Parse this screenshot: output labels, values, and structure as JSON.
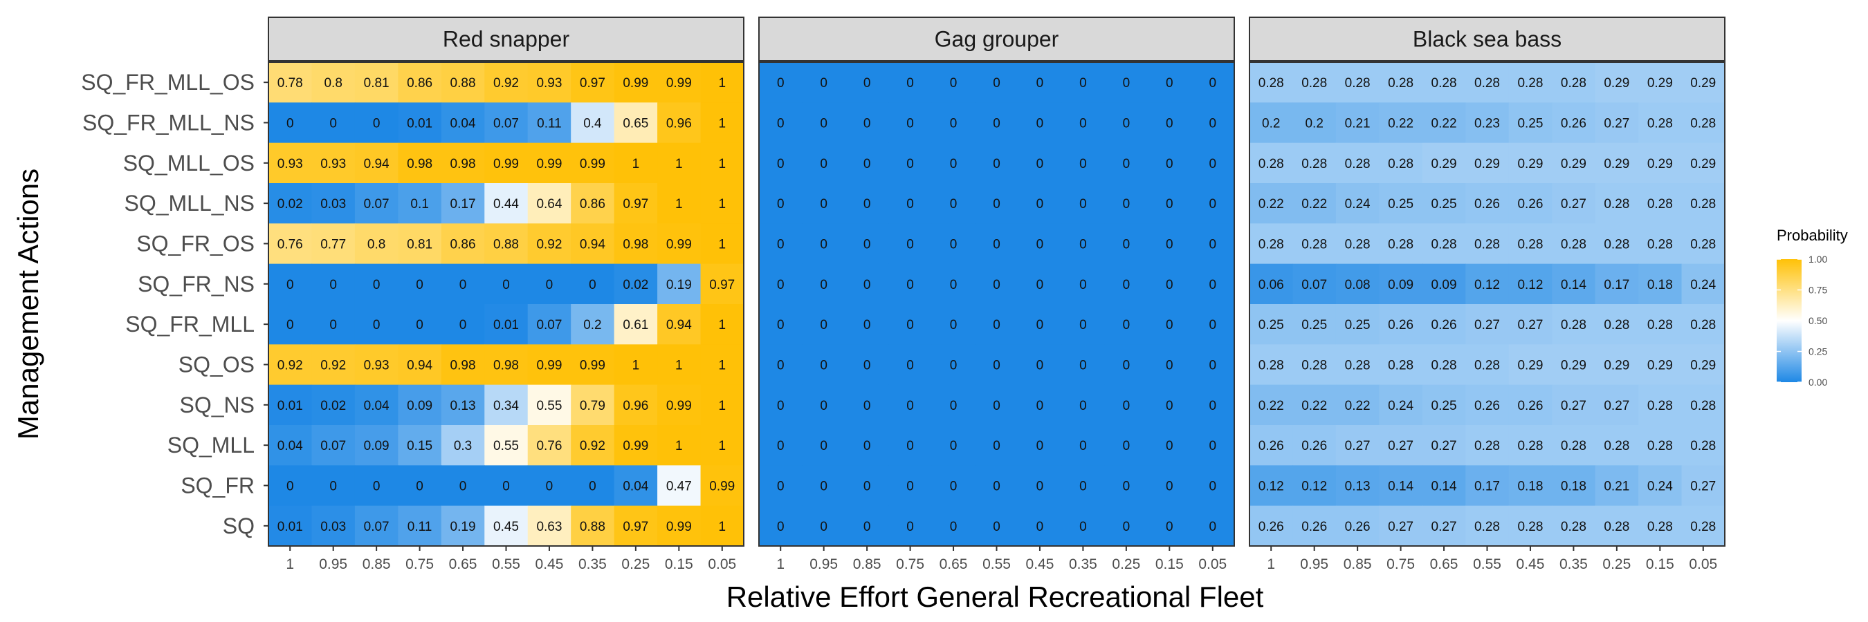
{
  "chart_data": {
    "type": "heatmap",
    "xlabel": "Relative Effort General Recreational Fleet",
    "ylabel": "Management Actions",
    "x": [
      "1",
      "0.95",
      "0.85",
      "0.75",
      "0.65",
      "0.55",
      "0.45",
      "0.35",
      "0.25",
      "0.15",
      "0.05"
    ],
    "y": [
      "SQ_FR_MLL_OS",
      "SQ_FR_MLL_NS",
      "SQ_MLL_OS",
      "SQ_MLL_NS",
      "SQ_FR_OS",
      "SQ_FR_NS",
      "SQ_FR_MLL",
      "SQ_OS",
      "SQ_NS",
      "SQ_MLL",
      "SQ_FR",
      "SQ"
    ],
    "legend": {
      "title": "Probability",
      "position": "right",
      "ticks": [
        "1.00",
        "0.75",
        "0.50",
        "0.25",
        "0.00"
      ],
      "colors": {
        "low": "#1e88e5",
        "mid": "#ffffff",
        "high": "#ffc107"
      }
    },
    "panels": [
      {
        "title": "Red snapper",
        "values": [
          [
            0.78,
            0.8,
            0.81,
            0.86,
            0.88,
            0.92,
            0.93,
            0.97,
            0.99,
            0.99,
            1
          ],
          [
            0,
            0,
            0,
            0.01,
            0.04,
            0.07,
            0.11,
            0.4,
            0.65,
            0.96,
            1
          ],
          [
            0.93,
            0.93,
            0.94,
            0.98,
            0.98,
            0.99,
            0.99,
            0.99,
            1,
            1,
            1
          ],
          [
            0.02,
            0.03,
            0.07,
            0.1,
            0.17,
            0.44,
            0.64,
            0.86,
            0.97,
            1,
            1
          ],
          [
            0.76,
            0.77,
            0.8,
            0.81,
            0.86,
            0.88,
            0.92,
            0.94,
            0.98,
            0.99,
            1
          ],
          [
            0,
            0,
            0,
            0,
            0,
            0,
            0,
            0,
            0.02,
            0.19,
            0.97
          ],
          [
            0,
            0,
            0,
            0,
            0,
            0.01,
            0.07,
            0.2,
            0.61,
            0.94,
            1
          ],
          [
            0.92,
            0.92,
            0.93,
            0.94,
            0.98,
            0.98,
            0.99,
            0.99,
            1,
            1,
            1
          ],
          [
            0.01,
            0.02,
            0.04,
            0.09,
            0.13,
            0.34,
            0.55,
            0.79,
            0.96,
            0.99,
            1
          ],
          [
            0.04,
            0.07,
            0.09,
            0.15,
            0.3,
            0.55,
            0.76,
            0.92,
            0.99,
            1,
            1
          ],
          [
            0,
            0,
            0,
            0,
            0,
            0,
            0,
            0,
            0.04,
            0.47,
            0.99
          ],
          [
            0.01,
            0.03,
            0.07,
            0.11,
            0.19,
            0.45,
            0.63,
            0.88,
            0.97,
            0.99,
            1
          ]
        ]
      },
      {
        "title": "Gag grouper",
        "values": [
          [
            0,
            0,
            0,
            0,
            0,
            0,
            0,
            0,
            0,
            0,
            0
          ],
          [
            0,
            0,
            0,
            0,
            0,
            0,
            0,
            0,
            0,
            0,
            0
          ],
          [
            0,
            0,
            0,
            0,
            0,
            0,
            0,
            0,
            0,
            0,
            0
          ],
          [
            0,
            0,
            0,
            0,
            0,
            0,
            0,
            0,
            0,
            0,
            0
          ],
          [
            0,
            0,
            0,
            0,
            0,
            0,
            0,
            0,
            0,
            0,
            0
          ],
          [
            0,
            0,
            0,
            0,
            0,
            0,
            0,
            0,
            0,
            0,
            0
          ],
          [
            0,
            0,
            0,
            0,
            0,
            0,
            0,
            0,
            0,
            0,
            0
          ],
          [
            0,
            0,
            0,
            0,
            0,
            0,
            0,
            0,
            0,
            0,
            0
          ],
          [
            0,
            0,
            0,
            0,
            0,
            0,
            0,
            0,
            0,
            0,
            0
          ],
          [
            0,
            0,
            0,
            0,
            0,
            0,
            0,
            0,
            0,
            0,
            0
          ],
          [
            0,
            0,
            0,
            0,
            0,
            0,
            0,
            0,
            0,
            0,
            0
          ],
          [
            0,
            0,
            0,
            0,
            0,
            0,
            0,
            0,
            0,
            0,
            0
          ]
        ]
      },
      {
        "title": "Black sea bass",
        "values": [
          [
            0.28,
            0.28,
            0.28,
            0.28,
            0.28,
            0.28,
            0.28,
            0.28,
            0.29,
            0.29,
            0.29
          ],
          [
            0.2,
            0.2,
            0.21,
            0.22,
            0.22,
            0.23,
            0.25,
            0.26,
            0.27,
            0.28,
            0.28
          ],
          [
            0.28,
            0.28,
            0.28,
            0.28,
            0.29,
            0.29,
            0.29,
            0.29,
            0.29,
            0.29,
            0.29
          ],
          [
            0.22,
            0.22,
            0.24,
            0.25,
            0.25,
            0.26,
            0.26,
            0.27,
            0.28,
            0.28,
            0.28
          ],
          [
            0.28,
            0.28,
            0.28,
            0.28,
            0.28,
            0.28,
            0.28,
            0.28,
            0.28,
            0.28,
            0.28
          ],
          [
            0.06,
            0.07,
            0.08,
            0.09,
            0.09,
            0.12,
            0.12,
            0.14,
            0.17,
            0.18,
            0.24
          ],
          [
            0.25,
            0.25,
            0.25,
            0.26,
            0.26,
            0.27,
            0.27,
            0.28,
            0.28,
            0.28,
            0.28
          ],
          [
            0.28,
            0.28,
            0.28,
            0.28,
            0.28,
            0.28,
            0.29,
            0.29,
            0.29,
            0.29,
            0.29
          ],
          [
            0.22,
            0.22,
            0.22,
            0.24,
            0.25,
            0.26,
            0.26,
            0.27,
            0.27,
            0.28,
            0.28
          ],
          [
            0.26,
            0.26,
            0.27,
            0.27,
            0.27,
            0.28,
            0.28,
            0.28,
            0.28,
            0.28,
            0.28
          ],
          [
            0.12,
            0.12,
            0.13,
            0.14,
            0.14,
            0.17,
            0.18,
            0.18,
            0.21,
            0.24,
            0.27
          ],
          [
            0.26,
            0.26,
            0.26,
            0.27,
            0.27,
            0.28,
            0.28,
            0.28,
            0.28,
            0.28,
            0.28
          ]
        ]
      }
    ]
  }
}
